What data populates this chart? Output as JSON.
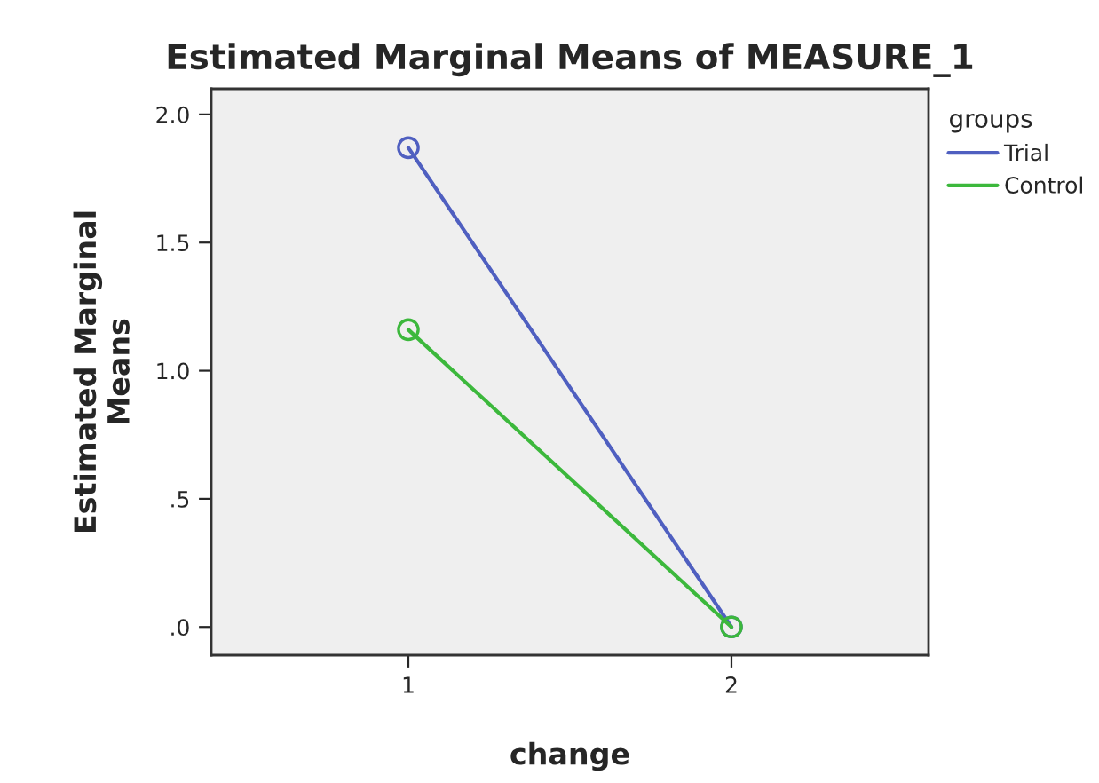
{
  "chart_data": {
    "type": "line",
    "title": "Estimated Marginal Means of MEASURE_1",
    "xlabel": "change",
    "ylabel": "Estimated Marginal\nMeans",
    "legend_title": "groups",
    "categories": [
      "1",
      "2"
    ],
    "series": [
      {
        "name": "Trial",
        "color": "#4f5fc0",
        "values": [
          1.87,
          0.0
        ]
      },
      {
        "name": "Control",
        "color": "#3cb83c",
        "values": [
          1.16,
          0.0
        ]
      }
    ],
    "ylim": [
      -0.11,
      2.1
    ],
    "yticks": [
      {
        "value": 0,
        "label": ".0"
      },
      {
        "value": 0.5,
        "label": ".5"
      },
      {
        "value": 1.0,
        "label": "1.0"
      },
      {
        "value": 1.5,
        "label": "1.5"
      },
      {
        "value": 2.0,
        "label": "2.0"
      }
    ],
    "marker": "circle",
    "line_style": "solid",
    "grid": false,
    "legend": "top right"
  }
}
